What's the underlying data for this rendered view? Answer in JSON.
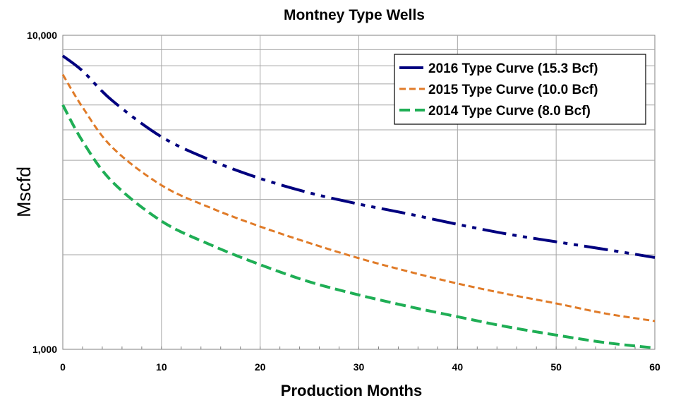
{
  "chart_data": {
    "type": "line",
    "title": "Montney Type Wells",
    "xlabel": "Production Months",
    "ylabel": "Mscfd",
    "xlim": [
      0,
      60
    ],
    "ylim": [
      1000,
      10000
    ],
    "yscale": "log",
    "x_ticks": [
      "0",
      "10",
      "20",
      "30",
      "40",
      "50",
      "60"
    ],
    "y_ticks": [
      "1,000",
      "10,000"
    ],
    "grid": true,
    "legend_position": "top-right",
    "series": [
      {
        "name": "2016 Type Curve (15.3 Bcf)",
        "color": "#00007f",
        "style": "dash-dot-dot",
        "x": [
          0,
          2,
          5,
          10,
          15,
          20,
          25,
          30,
          35,
          40,
          45,
          50,
          55,
          60
        ],
        "y": [
          8600,
          7700,
          6200,
          4750,
          4000,
          3500,
          3150,
          2900,
          2700,
          2500,
          2330,
          2200,
          2080,
          1960
        ]
      },
      {
        "name": "2015 Type Curve (10.0 Bcf)",
        "color": "#e07b28",
        "style": "short-dash",
        "x": [
          0,
          2,
          5,
          10,
          15,
          20,
          25,
          30,
          35,
          40,
          45,
          50,
          55,
          60
        ],
        "y": [
          7500,
          5900,
          4400,
          3330,
          2820,
          2460,
          2180,
          1950,
          1770,
          1620,
          1500,
          1400,
          1300,
          1230
        ]
      },
      {
        "name": "2014 Type Curve (8.0 Bcf)",
        "color": "#1fae55",
        "style": "dash",
        "x": [
          0,
          2,
          5,
          10,
          15,
          20,
          25,
          30,
          35,
          40,
          45,
          50,
          55,
          60
        ],
        "y": [
          6000,
          4600,
          3420,
          2560,
          2150,
          1860,
          1640,
          1490,
          1370,
          1270,
          1180,
          1110,
          1050,
          1010
        ]
      }
    ]
  }
}
